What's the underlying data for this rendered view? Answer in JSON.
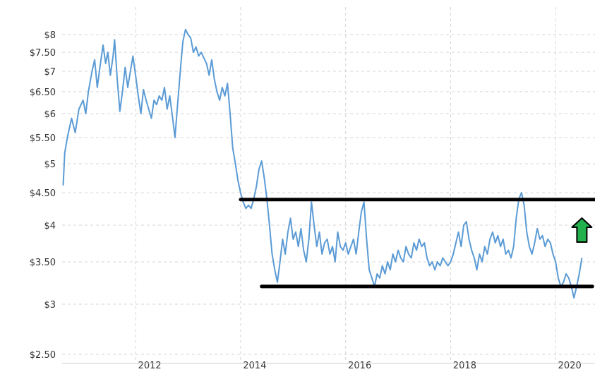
{
  "chart_data": {
    "type": "line",
    "title": "",
    "xlabel": "",
    "ylabel": "",
    "y_scale": "log",
    "xlim": [
      2010.6,
      2020.75
    ],
    "ylim": [
      2.45,
      8.3
    ],
    "grid": true,
    "x_ticks": [
      {
        "value": 2012,
        "label": "2012"
      },
      {
        "value": 2014,
        "label": "2014"
      },
      {
        "value": 2016,
        "label": "2016"
      },
      {
        "value": 2018,
        "label": "2018"
      },
      {
        "value": 2020,
        "label": "2020"
      }
    ],
    "y_ticks": [
      {
        "value": 8,
        "label": "$8"
      },
      {
        "value": 7.5,
        "label": "$7.50"
      },
      {
        "value": 7,
        "label": "$7"
      },
      {
        "value": 6.5,
        "label": "$6.50"
      },
      {
        "value": 6,
        "label": "$6"
      },
      {
        "value": 5.5,
        "label": "$5.50"
      },
      {
        "value": 5,
        "label": "$5"
      },
      {
        "value": 4.5,
        "label": "$4.50"
      },
      {
        "value": 4,
        "label": "$4"
      },
      {
        "value": 3.5,
        "label": "$3.50"
      },
      {
        "value": 3,
        "label": "$3"
      },
      {
        "value": 2.5,
        "label": "$2.50"
      }
    ],
    "series": [
      {
        "color": "#5b9bd5",
        "points": [
          [
            2010.62,
            4.62
          ],
          [
            2010.65,
            5.2
          ],
          [
            2010.7,
            5.5
          ],
          [
            2010.78,
            5.9
          ],
          [
            2010.85,
            5.6
          ],
          [
            2010.92,
            6.1
          ],
          [
            2011.0,
            6.3
          ],
          [
            2011.05,
            6.0
          ],
          [
            2011.1,
            6.5
          ],
          [
            2011.17,
            7.0
          ],
          [
            2011.22,
            7.3
          ],
          [
            2011.27,
            6.6
          ],
          [
            2011.33,
            7.2
          ],
          [
            2011.38,
            7.7
          ],
          [
            2011.43,
            7.2
          ],
          [
            2011.47,
            7.5
          ],
          [
            2011.52,
            6.9
          ],
          [
            2011.57,
            7.4
          ],
          [
            2011.6,
            7.85
          ],
          [
            2011.65,
            6.8
          ],
          [
            2011.7,
            6.05
          ],
          [
            2011.75,
            6.5
          ],
          [
            2011.8,
            7.1
          ],
          [
            2011.85,
            6.6
          ],
          [
            2011.9,
            7.0
          ],
          [
            2011.95,
            7.4
          ],
          [
            2012.0,
            6.9
          ],
          [
            2012.05,
            6.4
          ],
          [
            2012.1,
            6.0
          ],
          [
            2012.15,
            6.55
          ],
          [
            2012.2,
            6.3
          ],
          [
            2012.25,
            6.1
          ],
          [
            2012.3,
            5.9
          ],
          [
            2012.35,
            6.3
          ],
          [
            2012.4,
            6.2
          ],
          [
            2012.45,
            6.4
          ],
          [
            2012.5,
            6.3
          ],
          [
            2012.55,
            6.6
          ],
          [
            2012.6,
            6.1
          ],
          [
            2012.65,
            6.4
          ],
          [
            2012.7,
            5.95
          ],
          [
            2012.75,
            5.5
          ],
          [
            2012.8,
            6.2
          ],
          [
            2012.85,
            7.0
          ],
          [
            2012.9,
            7.8
          ],
          [
            2012.95,
            8.15
          ],
          [
            2013.0,
            8.0
          ],
          [
            2013.05,
            7.9
          ],
          [
            2013.1,
            7.5
          ],
          [
            2013.15,
            7.65
          ],
          [
            2013.2,
            7.4
          ],
          [
            2013.25,
            7.5
          ],
          [
            2013.3,
            7.35
          ],
          [
            2013.35,
            7.2
          ],
          [
            2013.4,
            6.9
          ],
          [
            2013.45,
            7.3
          ],
          [
            2013.5,
            6.8
          ],
          [
            2013.55,
            6.5
          ],
          [
            2013.6,
            6.3
          ],
          [
            2013.65,
            6.6
          ],
          [
            2013.7,
            6.4
          ],
          [
            2013.75,
            6.7
          ],
          [
            2013.8,
            6.0
          ],
          [
            2013.85,
            5.3
          ],
          [
            2013.9,
            5.0
          ],
          [
            2013.95,
            4.7
          ],
          [
            2014.0,
            4.5
          ],
          [
            2014.05,
            4.35
          ],
          [
            2014.1,
            4.25
          ],
          [
            2014.15,
            4.3
          ],
          [
            2014.2,
            4.25
          ],
          [
            2014.25,
            4.4
          ],
          [
            2014.3,
            4.6
          ],
          [
            2014.35,
            4.9
          ],
          [
            2014.4,
            5.05
          ],
          [
            2014.45,
            4.75
          ],
          [
            2014.5,
            4.4
          ],
          [
            2014.55,
            4.0
          ],
          [
            2014.6,
            3.6
          ],
          [
            2014.65,
            3.4
          ],
          [
            2014.7,
            3.25
          ],
          [
            2014.75,
            3.5
          ],
          [
            2014.8,
            3.8
          ],
          [
            2014.85,
            3.6
          ],
          [
            2014.9,
            3.9
          ],
          [
            2014.95,
            4.1
          ],
          [
            2015.0,
            3.8
          ],
          [
            2015.05,
            3.9
          ],
          [
            2015.1,
            3.7
          ],
          [
            2015.15,
            3.95
          ],
          [
            2015.2,
            3.65
          ],
          [
            2015.25,
            3.5
          ],
          [
            2015.3,
            3.8
          ],
          [
            2015.35,
            4.35
          ],
          [
            2015.4,
            4.0
          ],
          [
            2015.45,
            3.7
          ],
          [
            2015.5,
            3.9
          ],
          [
            2015.55,
            3.6
          ],
          [
            2015.6,
            3.75
          ],
          [
            2015.65,
            3.8
          ],
          [
            2015.7,
            3.6
          ],
          [
            2015.75,
            3.7
          ],
          [
            2015.8,
            3.5
          ],
          [
            2015.85,
            3.9
          ],
          [
            2015.9,
            3.7
          ],
          [
            2015.95,
            3.65
          ],
          [
            2016.0,
            3.75
          ],
          [
            2016.05,
            3.6
          ],
          [
            2016.1,
            3.7
          ],
          [
            2016.15,
            3.8
          ],
          [
            2016.2,
            3.6
          ],
          [
            2016.25,
            3.9
          ],
          [
            2016.3,
            4.2
          ],
          [
            2016.35,
            4.35
          ],
          [
            2016.4,
            3.8
          ],
          [
            2016.45,
            3.4
          ],
          [
            2016.5,
            3.3
          ],
          [
            2016.55,
            3.2
          ],
          [
            2016.6,
            3.35
          ],
          [
            2016.65,
            3.3
          ],
          [
            2016.7,
            3.45
          ],
          [
            2016.75,
            3.35
          ],
          [
            2016.8,
            3.5
          ],
          [
            2016.85,
            3.4
          ],
          [
            2016.9,
            3.6
          ],
          [
            2016.95,
            3.5
          ],
          [
            2017.0,
            3.65
          ],
          [
            2017.05,
            3.55
          ],
          [
            2017.1,
            3.5
          ],
          [
            2017.15,
            3.7
          ],
          [
            2017.2,
            3.6
          ],
          [
            2017.25,
            3.55
          ],
          [
            2017.3,
            3.75
          ],
          [
            2017.35,
            3.65
          ],
          [
            2017.4,
            3.8
          ],
          [
            2017.45,
            3.7
          ],
          [
            2017.5,
            3.75
          ],
          [
            2017.55,
            3.55
          ],
          [
            2017.6,
            3.45
          ],
          [
            2017.65,
            3.5
          ],
          [
            2017.7,
            3.4
          ],
          [
            2017.75,
            3.5
          ],
          [
            2017.8,
            3.45
          ],
          [
            2017.85,
            3.55
          ],
          [
            2017.9,
            3.5
          ],
          [
            2017.95,
            3.45
          ],
          [
            2018.0,
            3.5
          ],
          [
            2018.05,
            3.6
          ],
          [
            2018.1,
            3.75
          ],
          [
            2018.15,
            3.9
          ],
          [
            2018.2,
            3.7
          ],
          [
            2018.25,
            4.0
          ],
          [
            2018.3,
            4.05
          ],
          [
            2018.35,
            3.8
          ],
          [
            2018.4,
            3.65
          ],
          [
            2018.45,
            3.55
          ],
          [
            2018.5,
            3.4
          ],
          [
            2018.55,
            3.6
          ],
          [
            2018.6,
            3.5
          ],
          [
            2018.65,
            3.7
          ],
          [
            2018.7,
            3.6
          ],
          [
            2018.75,
            3.8
          ],
          [
            2018.8,
            3.9
          ],
          [
            2018.85,
            3.75
          ],
          [
            2018.9,
            3.85
          ],
          [
            2018.95,
            3.7
          ],
          [
            2019.0,
            3.8
          ],
          [
            2019.05,
            3.6
          ],
          [
            2019.1,
            3.65
          ],
          [
            2019.15,
            3.55
          ],
          [
            2019.2,
            3.7
          ],
          [
            2019.25,
            4.1
          ],
          [
            2019.3,
            4.4
          ],
          [
            2019.35,
            4.5
          ],
          [
            2019.4,
            4.3
          ],
          [
            2019.45,
            3.9
          ],
          [
            2019.5,
            3.7
          ],
          [
            2019.55,
            3.6
          ],
          [
            2019.6,
            3.75
          ],
          [
            2019.65,
            3.95
          ],
          [
            2019.7,
            3.8
          ],
          [
            2019.75,
            3.85
          ],
          [
            2019.8,
            3.7
          ],
          [
            2019.85,
            3.8
          ],
          [
            2019.9,
            3.75
          ],
          [
            2019.95,
            3.6
          ],
          [
            2020.0,
            3.5
          ],
          [
            2020.05,
            3.3
          ],
          [
            2020.1,
            3.2
          ],
          [
            2020.15,
            3.25
          ],
          [
            2020.2,
            3.35
          ],
          [
            2020.25,
            3.3
          ],
          [
            2020.3,
            3.2
          ],
          [
            2020.35,
            3.07
          ],
          [
            2020.4,
            3.2
          ],
          [
            2020.45,
            3.35
          ],
          [
            2020.5,
            3.55
          ]
        ]
      }
    ],
    "annotations": [
      {
        "type": "hline",
        "value": 4.39,
        "x_from": 2014.0,
        "x_to": 2020.75,
        "color": "#000000"
      },
      {
        "type": "hline",
        "value": 3.2,
        "x_from": 2014.4,
        "x_to": 2020.7,
        "color": "#000000"
      },
      {
        "type": "arrow-up",
        "x": 2020.5,
        "value": 4.0,
        "fill": "#22b14c",
        "stroke": "#000000"
      }
    ]
  }
}
